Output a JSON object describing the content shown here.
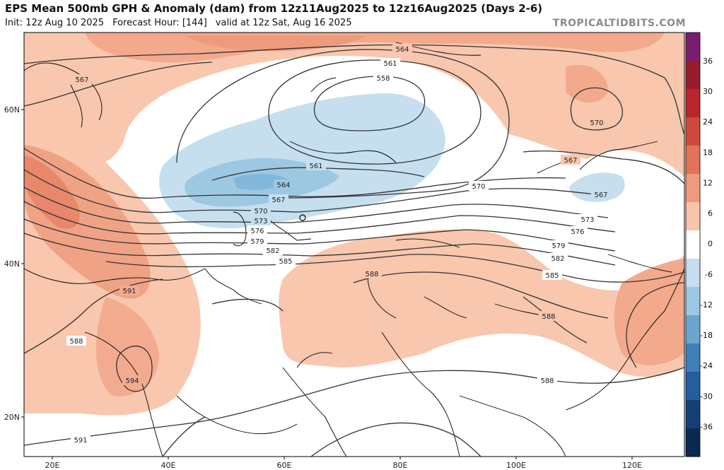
{
  "header": {
    "title": "EPS Mean 500mb GPH & Anomaly (dam) from 12z11Aug2025 to 12z16Aug2025 (Days 2-6)",
    "init": "Init: 12z Aug 10 2025",
    "forecast_hour": "Forecast Hour: [144]",
    "valid": "valid at 12z Sat, Aug 16 2025",
    "site": "TROPICALTIDBITS.COM"
  },
  "axes": {
    "lat_labels": [
      "60N",
      "40N",
      "20N"
    ],
    "lon_labels": [
      "20E",
      "40E",
      "60E",
      "80E",
      "100E",
      "120E"
    ]
  },
  "colorbar": {
    "labels": [
      "36",
      "30",
      "24",
      "18",
      "12",
      "6",
      "0",
      "-6",
      "-12",
      "-18",
      "-24",
      "-30",
      "-36"
    ],
    "colors": [
      "#7b1d6e",
      "#9a1a2e",
      "#b9262e",
      "#cf4a3c",
      "#e2725a",
      "#ef9a7d",
      "#f8c4aa",
      "#ffffff",
      "#c5dfef",
      "#9cc8e2",
      "#6aa6cf",
      "#3f7fbb",
      "#235e9e",
      "#143f76",
      "#0b2950"
    ]
  },
  "contour_labels": [
    "564",
    "561",
    "558",
    "567",
    "570",
    "561",
    "564",
    "567",
    "570",
    "573",
    "576",
    "579",
    "582",
    "585",
    "588",
    "591",
    "588",
    "594",
    "591",
    "570",
    "573",
    "576",
    "579",
    "582",
    "585",
    "588",
    "588",
    "567",
    "567",
    "570"
  ]
}
